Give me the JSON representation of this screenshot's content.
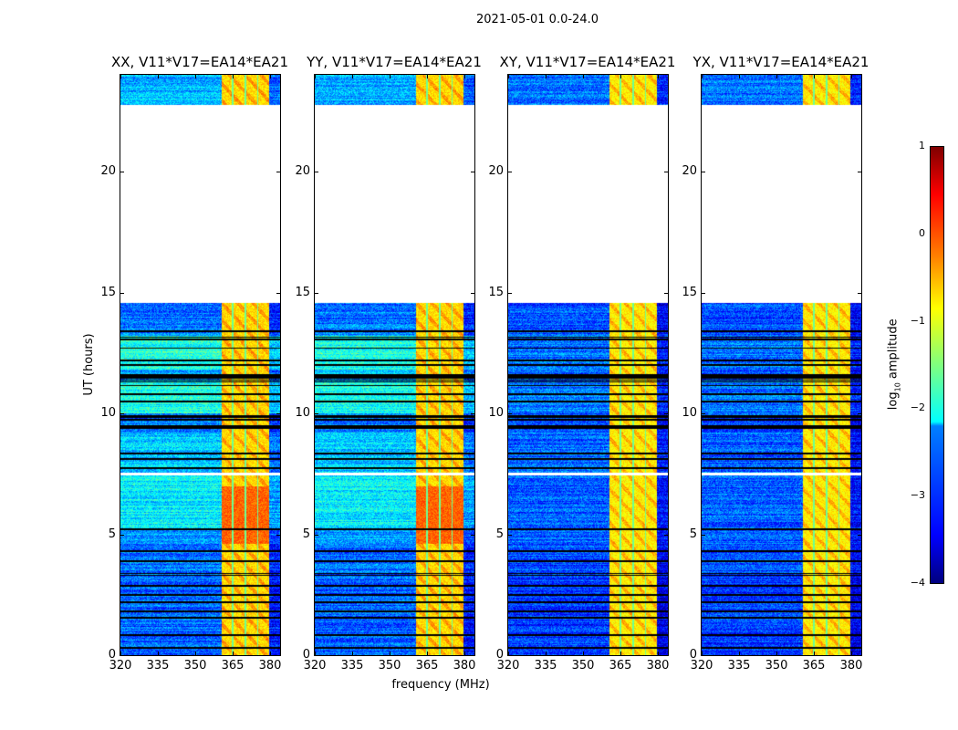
{
  "chart_data": {
    "type": "heatmap",
    "suptitle": "2021-05-01 0.0-24.0",
    "xlabel": "frequency (MHz)",
    "ylabel": "UT (hours)",
    "xlim": [
      320,
      384
    ],
    "ylim": [
      0,
      24
    ],
    "xticks": [
      "320",
      "335",
      "350",
      "365",
      "380"
    ],
    "xtick_values": [
      320,
      335,
      350,
      365,
      380
    ],
    "yticks": [
      "0",
      "5",
      "10",
      "15",
      "20"
    ],
    "ytick_values": [
      0,
      5,
      10,
      15,
      20
    ],
    "panels": [
      {
        "title": "XX, V11*V17=EA14*EA21",
        "kind": "parallel"
      },
      {
        "title": "YY, V11*V17=EA14*EA21",
        "kind": "parallel"
      },
      {
        "title": "XY, V11*V17=EA14*EA21",
        "kind": "cross"
      },
      {
        "title": "YX, V11*V17=EA14*EA21",
        "kind": "cross"
      }
    ],
    "time_segments_log10_amp": [
      {
        "start": 0.0,
        "end": 3.4,
        "parallel": -2.9,
        "cross": -3.1
      },
      {
        "start": 3.4,
        "end": 4.6,
        "parallel": -2.8,
        "cross": -3.0
      },
      {
        "start": 4.6,
        "end": 5.2,
        "parallel": -2.6,
        "cross": -2.9
      },
      {
        "start": 5.2,
        "end": 7.45,
        "parallel": -2.2,
        "cross": -2.9
      },
      {
        "start": 7.55,
        "end": 9.2,
        "parallel": -2.4,
        "cross": -2.9
      },
      {
        "start": 9.2,
        "end": 10.0,
        "parallel": -2.8,
        "cross": -3.0
      },
      {
        "start": 10.0,
        "end": 11.3,
        "parallel": -2.0,
        "cross": -2.8
      },
      {
        "start": 11.3,
        "end": 11.8,
        "parallel": -2.5,
        "cross": -2.9
      },
      {
        "start": 11.8,
        "end": 13.2,
        "parallel": -2.0,
        "cross": -2.8
      },
      {
        "start": 13.2,
        "end": 14.55,
        "parallel": -2.8,
        "cross": -3.0
      },
      {
        "start": 22.75,
        "end": 24.0,
        "parallel": -2.5,
        "cross": -2.8
      }
    ],
    "rfi_band_mhz": [
      360.5,
      379.5
    ],
    "rfi_subband_edges_mhz": [
      365,
      370,
      375
    ],
    "rfi_level": {
      "parallel": -0.7,
      "cross": -0.8,
      "peak_5_to_7h": -0.2
    },
    "flagged_hours_black": [
      0.31,
      0.84,
      1.56,
      1.8,
      2.18,
      2.5,
      2.87,
      3.3,
      3.38,
      3.9,
      4.3,
      5.2,
      7.73,
      8.1,
      8.35,
      9.4,
      9.48,
      9.75,
      9.83,
      9.9,
      10.5,
      10.8,
      11.15,
      11.3,
      11.38,
      11.46,
      11.54,
      11.6,
      12.0,
      12.2,
      12.7,
      13.05,
      13.15,
      13.4
    ],
    "no_data_hours": [
      [
        7.45,
        7.55
      ],
      [
        14.55,
        22.75
      ]
    ],
    "colorbar": {
      "label": "log₁₀ amplitude",
      "label_main": "log",
      "label_sub": "10",
      "label_rest": " amplitude",
      "range": [
        -4,
        1
      ],
      "ticks": [
        "1",
        "0",
        "−1",
        "−2",
        "−3",
        "−4"
      ],
      "tick_values": [
        1,
        0,
        -1,
        -2,
        -3,
        -4
      ],
      "colormap": "jet"
    }
  }
}
